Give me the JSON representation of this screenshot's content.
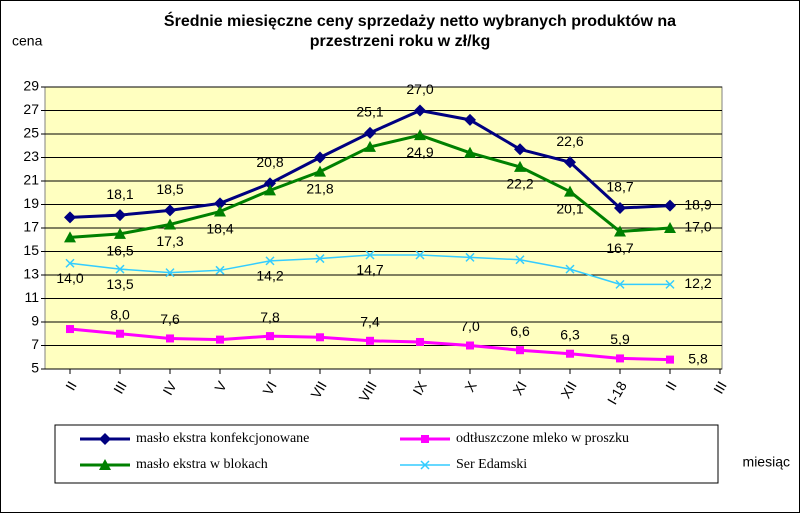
{
  "chart_data": {
    "type": "line",
    "title": [
      "Średnie miesięczne ceny sprzedaży netto  wybranych produktów na",
      "przestrzeni roku w zł/kg"
    ],
    "y_label": "cena",
    "x_label": "miesiąc",
    "categories": [
      "II",
      "III",
      "IV",
      "V",
      "VI",
      "VII",
      "VIII",
      "IX",
      "X",
      "XI",
      "XII",
      "I-18",
      "II",
      "III"
    ],
    "ylim": [
      5,
      29
    ],
    "yticks": [
      5,
      7,
      9,
      11,
      13,
      15,
      17,
      19,
      21,
      23,
      25,
      27,
      29
    ],
    "grid": true,
    "series": [
      {
        "name": "masło ekstra konfekcjonowane",
        "color": "#000080",
        "marker": "diamond",
        "values": [
          17.9,
          18.1,
          18.5,
          19.1,
          20.8,
          23.0,
          25.1,
          27.0,
          26.2,
          23.7,
          22.6,
          18.7,
          18.9,
          null
        ],
        "value_labels": [
          null,
          "18,1",
          "18,5",
          null,
          "20,8",
          null,
          "25,1",
          "27,0",
          null,
          null,
          "22,6",
          "18,7",
          "18,9",
          null
        ]
      },
      {
        "name": "odtłuszczone mleko w proszku",
        "color": "#ff00ff",
        "marker": "square",
        "values": [
          8.4,
          8.0,
          7.6,
          7.5,
          7.8,
          7.7,
          7.4,
          7.3,
          7.0,
          6.6,
          6.3,
          5.9,
          5.8,
          null
        ],
        "value_labels": [
          null,
          "8,0",
          "7,6",
          null,
          "7,8",
          null,
          "7,4",
          null,
          "7,0",
          "6,6",
          "6,3",
          "5,9",
          "5,8",
          null
        ]
      },
      {
        "name": "masło ekstra w blokach",
        "color": "#008000",
        "marker": "triangle",
        "values": [
          16.2,
          16.5,
          17.3,
          18.4,
          20.2,
          21.8,
          23.9,
          24.9,
          23.4,
          22.2,
          20.1,
          16.7,
          17.0,
          null
        ],
        "value_labels": [
          null,
          "16,5",
          "17,3",
          "18,4",
          null,
          "21,8",
          null,
          "24,9",
          null,
          "22,2",
          "20,1",
          "16,7",
          "17,0",
          null
        ]
      },
      {
        "name": "Ser Edamski",
        "color": "#33ccff",
        "marker": "x",
        "values": [
          14.0,
          13.5,
          13.2,
          13.4,
          14.2,
          14.4,
          14.7,
          14.7,
          14.5,
          14.3,
          13.5,
          12.2,
          12.2,
          null
        ],
        "value_labels": [
          "14,0",
          "13,5",
          null,
          null,
          "14,2",
          null,
          "14,7",
          null,
          null,
          null,
          null,
          null,
          "12,2",
          null
        ]
      }
    ]
  }
}
